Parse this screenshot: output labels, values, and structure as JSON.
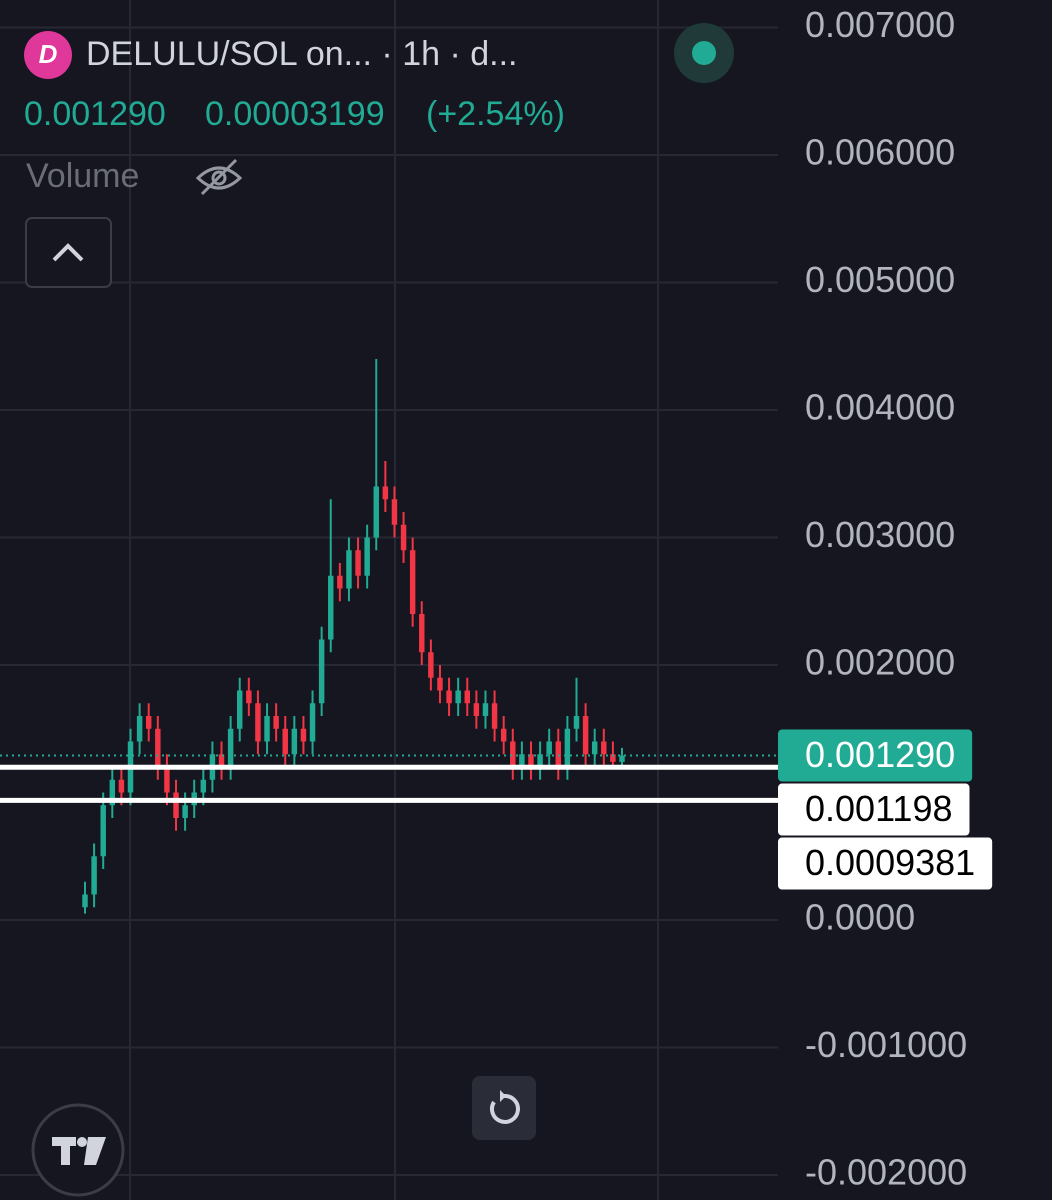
{
  "chart_data": {
    "type": "candlestick",
    "title": "DELULU/SOL on... · 1h · d...",
    "last_price": "0.001290",
    "change": "0.00003199",
    "change_percent": "(+2.54%)",
    "volume_label": "Volume",
    "up_color": "#22ab94",
    "down_color": "#f23645",
    "grid": true,
    "ylim": [
      -0.0021961,
      0.0072157
    ],
    "yticks": [
      {
        "value": 0.007,
        "label": "0.007000"
      },
      {
        "value": 0.006,
        "label": "0.006000"
      },
      {
        "value": 0.005,
        "label": "0.005000"
      },
      {
        "value": 0.004,
        "label": "0.004000"
      },
      {
        "value": 0.003,
        "label": "0.003000"
      },
      {
        "value": 0.002,
        "label": "0.002000"
      },
      {
        "value": 0,
        "label": "0.0000"
      },
      {
        "value": -0.001,
        "label": "-0.001000"
      },
      {
        "value": -0.002,
        "label": "-0.002000"
      }
    ],
    "price_lines": [
      {
        "value": 0.00129,
        "label": "0.001290",
        "color": "#22ab94"
      },
      {
        "value": 0.001198,
        "label": "0.001198",
        "color": "#ffffff"
      },
      {
        "value": 0.0009381,
        "label": "0.0009381",
        "color": "#ffffff"
      }
    ],
    "open": [
      0.0001,
      0.0002,
      0.0005,
      0.0009,
      0.0011,
      0.001,
      0.0014,
      0.0016,
      0.0015,
      0.0012,
      0.001,
      0.0008,
      0.0009,
      0.001,
      0.0011,
      0.0013,
      0.0012,
      0.0015,
      0.0018,
      0.0017,
      0.0014,
      0.0016,
      0.0015,
      0.0013,
      0.0015,
      0.0014,
      0.0017,
      0.0022,
      0.0027,
      0.0026,
      0.0029,
      0.0027,
      0.003,
      0.0034,
      0.0033,
      0.0031,
      0.0029,
      0.0024,
      0.0021,
      0.0019,
      0.0018,
      0.0017,
      0.0018,
      0.0017,
      0.0016,
      0.0017,
      0.0015,
      0.0014,
      0.0012,
      0.0013,
      0.0012,
      0.0013,
      0.0014,
      0.0012,
      0.0015,
      0.0016,
      0.0013,
      0.0014,
      0.0013,
      0.00124
    ],
    "high": [
      0.0003,
      0.0006,
      0.001,
      0.0012,
      0.0012,
      0.0015,
      0.0017,
      0.0017,
      0.0016,
      0.0013,
      0.0011,
      0.001,
      0.0011,
      0.0012,
      0.0014,
      0.0014,
      0.0016,
      0.0019,
      0.0019,
      0.0018,
      0.0017,
      0.0017,
      0.0016,
      0.0016,
      0.0016,
      0.0018,
      0.0023,
      0.0033,
      0.0028,
      0.003,
      0.003,
      0.0031,
      0.0044,
      0.0036,
      0.0034,
      0.0032,
      0.003,
      0.0025,
      0.0022,
      0.002,
      0.0019,
      0.0019,
      0.0019,
      0.0018,
      0.0018,
      0.0018,
      0.0016,
      0.0015,
      0.0014,
      0.0014,
      0.0014,
      0.0015,
      0.0015,
      0.0016,
      0.0019,
      0.0017,
      0.0015,
      0.0015,
      0.0014,
      0.00135
    ],
    "low": [
      5e-05,
      0.0001,
      0.0004,
      0.0008,
      0.0009,
      0.0009,
      0.0013,
      0.0014,
      0.0011,
      0.0009,
      0.0007,
      0.0007,
      0.0008,
      0.0009,
      0.001,
      0.0011,
      0.0011,
      0.0014,
      0.0016,
      0.0013,
      0.0013,
      0.0014,
      0.0012,
      0.0012,
      0.0013,
      0.0013,
      0.0016,
      0.0021,
      0.0025,
      0.0025,
      0.0026,
      0.0026,
      0.0029,
      0.0032,
      0.003,
      0.0028,
      0.0023,
      0.002,
      0.0018,
      0.0017,
      0.0016,
      0.0016,
      0.0016,
      0.0015,
      0.0015,
      0.0014,
      0.0013,
      0.0011,
      0.0011,
      0.0011,
      0.0011,
      0.0012,
      0.0011,
      0.0011,
      0.0014,
      0.0012,
      0.0012,
      0.0012,
      0.0012,
      0.0012
    ],
    "close": [
      0.0002,
      0.0005,
      0.0009,
      0.0011,
      0.001,
      0.0014,
      0.0016,
      0.0015,
      0.0012,
      0.001,
      0.0008,
      0.0009,
      0.001,
      0.0011,
      0.0013,
      0.0012,
      0.0015,
      0.0018,
      0.0017,
      0.0014,
      0.0016,
      0.0015,
      0.0013,
      0.0015,
      0.0014,
      0.0017,
      0.0022,
      0.0027,
      0.0026,
      0.0029,
      0.0027,
      0.003,
      0.0034,
      0.0033,
      0.0031,
      0.0029,
      0.0024,
      0.0021,
      0.0019,
      0.0018,
      0.0017,
      0.0018,
      0.0017,
      0.0016,
      0.0017,
      0.0015,
      0.0014,
      0.0012,
      0.0013,
      0.0012,
      0.0013,
      0.0014,
      0.0012,
      0.0015,
      0.0016,
      0.0013,
      0.0014,
      0.0013,
      0.00124,
      0.00129
    ]
  }
}
